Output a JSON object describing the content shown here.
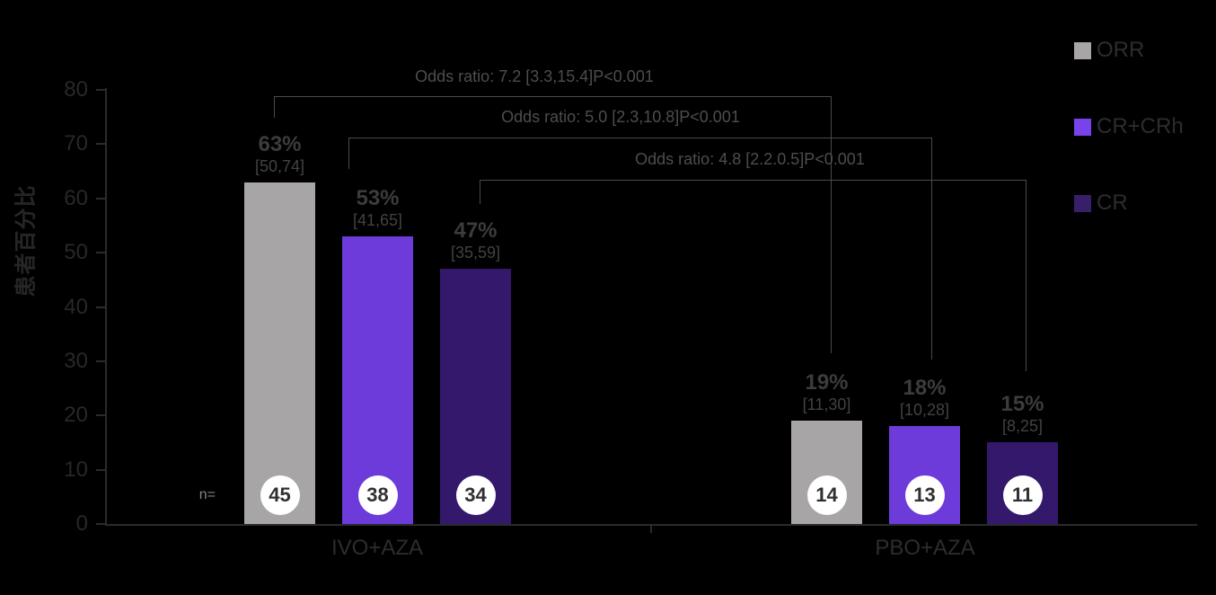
{
  "y_axis": {
    "label": "患者百分比",
    "ticks": [
      80,
      70,
      60,
      50,
      40,
      30,
      20,
      10,
      0
    ]
  },
  "n_prefix": "n=",
  "legend": [
    {
      "label": "ORR",
      "color": "#A7A5A6"
    },
    {
      "label": "CR+CRh",
      "color": "#7843EC"
    },
    {
      "label": "CR",
      "color": "#372069"
    }
  ],
  "groups": [
    {
      "label": "IVO+AZA",
      "bars": [
        {
          "series": "ORR",
          "pct": "63%",
          "ci": "[50,74]",
          "n": "45"
        },
        {
          "series": "CR+CRh",
          "pct": "53%",
          "ci": "[41,65]",
          "n": "38"
        },
        {
          "series": "CR",
          "pct": "47%",
          "ci": "[35,59]",
          "n": "34"
        }
      ]
    },
    {
      "label": "PBO+AZA",
      "bars": [
        {
          "series": "ORR",
          "pct": "19%",
          "ci": "[11,30]",
          "n": "14"
        },
        {
          "series": "CR+CRh",
          "pct": "18%",
          "ci": "[10,28]",
          "n": "13"
        },
        {
          "series": "CR",
          "pct": "15%",
          "ci": "[8,25]",
          "n": "11"
        }
      ]
    }
  ],
  "annotations": [
    {
      "text": "Odds ratio: 7.2 [3.3,15.4]P<0.001"
    },
    {
      "text": "Odds ratio: 5.0 [2.3,10.8]P<0.001"
    },
    {
      "text": "Odds ratio: 4.8 [2.2.0.5]P<0.001"
    }
  ],
  "colors": {
    "background": "#000000",
    "orr_bar": "#A7A5A6",
    "cr_crh_bar": "#6C3BD9",
    "cr_bar": "#33186C",
    "axis": "#2b2b2b",
    "bracket_line": "#4a4a4a",
    "circle_fill": "#ffffff"
  },
  "chart_data": {
    "type": "bar",
    "categories": [
      "IVO+AZA",
      "PBO+AZA"
    ],
    "series": [
      {
        "name": "ORR",
        "values": [
          63,
          19
        ],
        "ci": [
          [
            50,
            74
          ],
          [
            11,
            30
          ]
        ],
        "n": [
          45,
          14
        ],
        "color": "#A7A5A6"
      },
      {
        "name": "CR+CRh",
        "values": [
          53,
          18
        ],
        "ci": [
          [
            41,
            65
          ],
          [
            10,
            28
          ]
        ],
        "n": [
          38,
          13
        ],
        "color": "#6C3BD9"
      },
      {
        "name": "CR",
        "values": [
          47,
          15
        ],
        "ci": [
          [
            35,
            59
          ],
          [
            8,
            25
          ]
        ],
        "n": [
          34,
          11
        ],
        "color": "#33186C"
      }
    ],
    "title": "",
    "xlabel": "",
    "ylabel": "患者百分比",
    "ylim": [
      0,
      80
    ],
    "yticks": [
      0,
      10,
      20,
      30,
      40,
      50,
      60,
      70,
      80
    ],
    "grid": false,
    "legend_position": "top-right",
    "annotations": [
      {
        "comparison": "ORR IVO+AZA vs PBO+AZA",
        "text": "Odds ratio: 7.2 [3.3,15.4]P<0.001"
      },
      {
        "comparison": "CR+CRh IVO+AZA vs PBO+AZA",
        "text": "Odds ratio: 5.0 [2.3,10.8]P<0.001"
      },
      {
        "comparison": "CR IVO+AZA vs PBO+AZA",
        "text": "Odds ratio: 4.8 [2.2.0.5]P<0.001"
      }
    ]
  }
}
